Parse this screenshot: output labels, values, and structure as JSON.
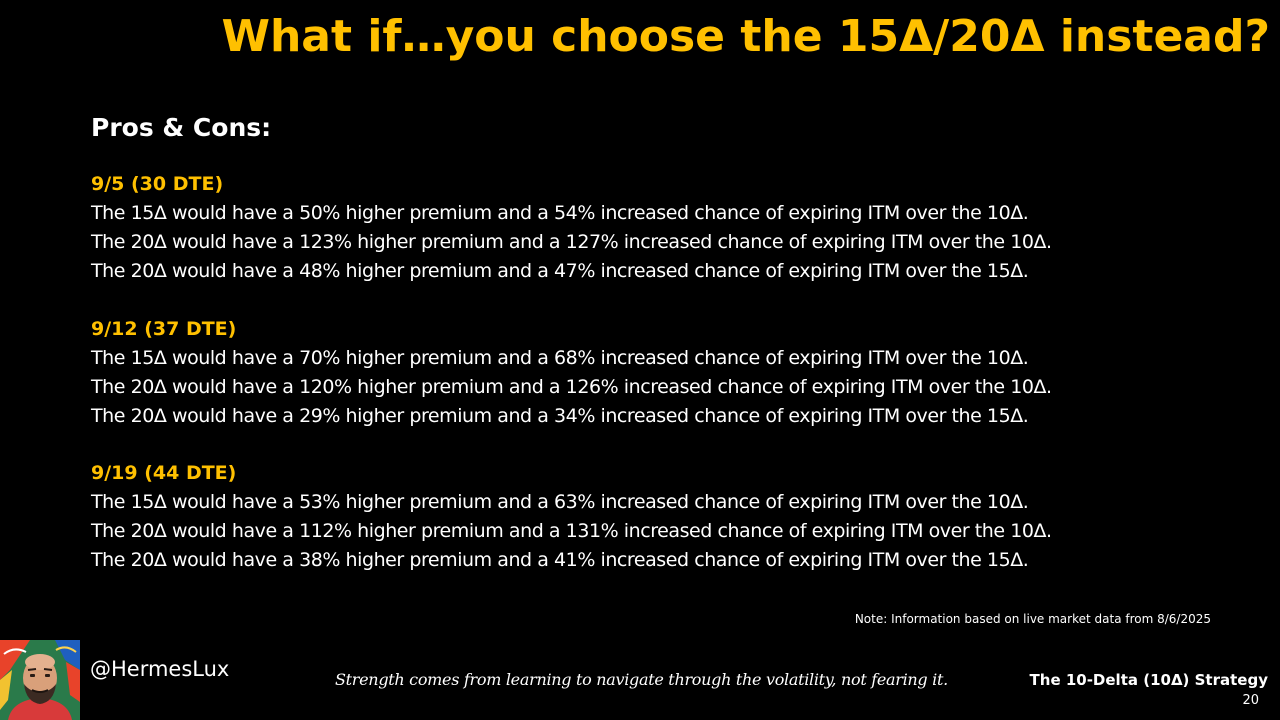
{
  "slide": {
    "title": "What if…you choose the 15Δ/20Δ instead?",
    "heading": "Pros & Cons:",
    "sections": [
      {
        "title": "9/5 (30 DTE)",
        "lines": [
          "The 15Δ would have a 50% higher premium and a 54% increased chance of expiring ITM over the 10Δ.",
          "The 20Δ would have a 123% higher premium and a 127% increased chance of expiring ITM over the 10Δ.",
          "The 20Δ would have a 48% higher premium and a 47% increased chance of expiring ITM over the 15Δ."
        ]
      },
      {
        "title": "9/12 (37 DTE)",
        "lines": [
          "The 15Δ would have a 70% higher premium and a 68% increased chance of expiring ITM over the 10Δ.",
          "The 20Δ would have a 120% higher premium and a 126% increased chance of expiring ITM over the 10Δ.",
          "The 20Δ would have a 29% higher premium and a 34% increased chance of expiring ITM over the 15Δ."
        ]
      },
      {
        "title": "9/19 (44 DTE)",
        "lines": [
          "The 15Δ would have a 53% higher premium and a 63% increased chance of expiring ITM over the 10Δ.",
          "The 20Δ would have a 112% higher premium and a 131% increased chance of expiring ITM over the 10Δ.",
          "The 20Δ would have a 38% higher premium and a 41% increased chance of expiring ITM over the 15Δ."
        ]
      }
    ],
    "note": "Note:  Information based on live market data from 8/6/2025"
  },
  "footer": {
    "handle": "@HermesLux",
    "quote": "Strength comes from learning to navigate through the volatility, not fearing it.",
    "strategy": "The 10-Delta (10Δ) Strategy",
    "page_number": "20",
    "avatar_icon": "avatar-portrait-icon"
  },
  "colors": {
    "background": "#000000",
    "accent": "#FFC000",
    "text": "#FFFFFF"
  }
}
